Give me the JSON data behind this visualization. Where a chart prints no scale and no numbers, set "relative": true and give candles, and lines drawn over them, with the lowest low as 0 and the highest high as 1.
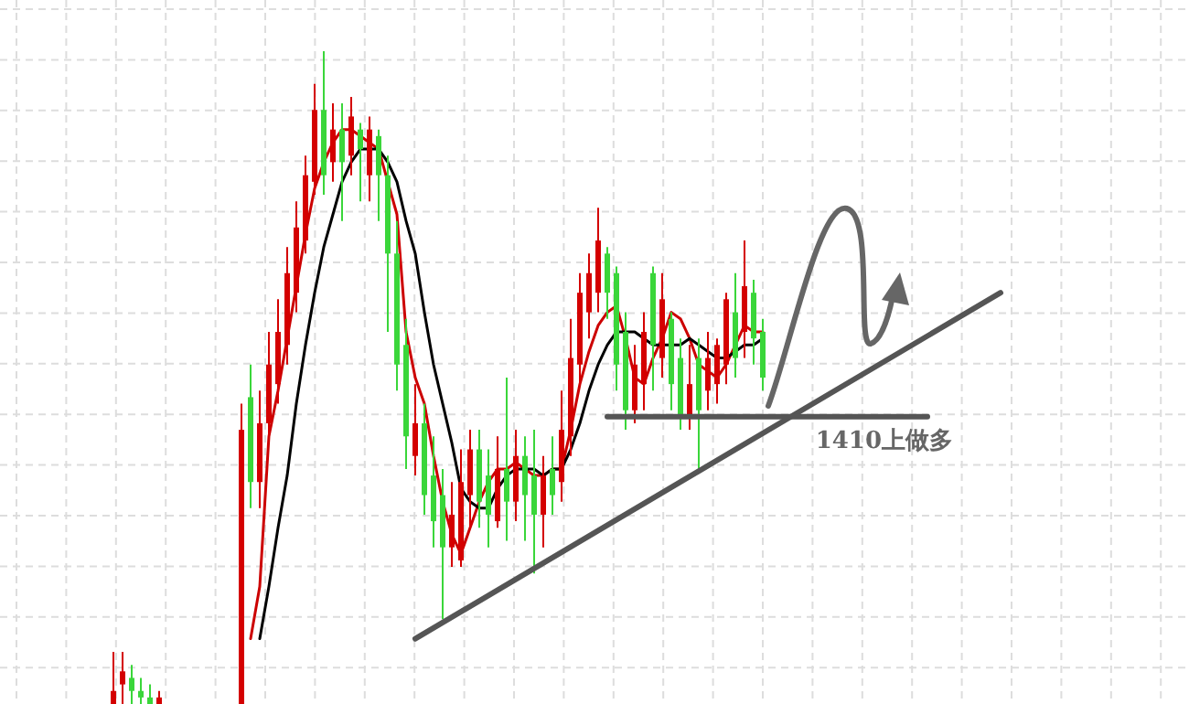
{
  "chart_data": {
    "type": "candlestick",
    "relative": true,
    "grid": true,
    "categories": [
      null,
      null,
      null,
      null,
      null,
      null,
      null,
      null,
      null,
      null,
      null,
      null,
      null,
      null,
      null,
      null,
      null,
      null,
      null,
      null,
      null,
      null,
      null,
      null,
      null,
      null,
      null,
      null,
      null,
      null,
      null,
      null,
      null,
      null,
      null,
      null,
      null,
      null,
      null,
      null,
      null,
      null,
      null,
      null,
      null,
      null,
      null,
      null,
      null,
      null,
      null,
      null,
      null,
      null,
      null,
      null,
      null,
      null,
      null,
      null,
      null,
      null,
      null,
      null,
      null,
      null,
      null,
      null,
      null,
      null,
      null,
      null,
      null,
      null,
      null,
      null,
      null,
      null,
      null,
      null,
      null,
      null,
      null,
      null,
      null,
      null,
      null,
      null,
      null,
      null,
      null,
      null,
      null,
      null,
      null,
      null,
      null,
      null
    ],
    "ohlc": [
      [
        0,
        0.08,
        0,
        0.02
      ],
      [
        0.03,
        0.08,
        0,
        0.05
      ],
      [
        0.04,
        0.06,
        0,
        0.02
      ],
      [
        0.02,
        0.04,
        0,
        0.01
      ],
      [
        0.01,
        0.03,
        0,
        0.0
      ],
      [
        0,
        0.02,
        0,
        0.01
      ],
      null,
      null,
      null,
      null,
      null,
      null,
      null,
      null,
      [
        0,
        0.46,
        0,
        0.42
      ],
      [
        0.47,
        0.52,
        0.3,
        0.34
      ],
      [
        0.34,
        0.48,
        0.3,
        0.43
      ],
      [
        0.43,
        0.57,
        0.41,
        0.52
      ],
      [
        0.49,
        0.62,
        0.46,
        0.57
      ],
      [
        0.55,
        0.7,
        0.52,
        0.66
      ],
      [
        0.63,
        0.77,
        0.6,
        0.73
      ],
      [
        0.71,
        0.84,
        0.69,
        0.81
      ],
      [
        0.8,
        0.95,
        0.78,
        0.91
      ],
      [
        0.91,
        1,
        0.78,
        0.81
      ],
      [
        0.83,
        0.92,
        0.8,
        0.88
      ],
      [
        0.88,
        0.92,
        0.74,
        0.83
      ],
      [
        0.84,
        0.93,
        0.81,
        0.9
      ],
      [
        0.88,
        0.89,
        0.77,
        0.85
      ],
      [
        0.81,
        0.9,
        0.77,
        0.88
      ],
      [
        0.87,
        0.88,
        0.74,
        0.81
      ],
      [
        0.81,
        0.84,
        0.57,
        0.69
      ],
      [
        0.69,
        0.74,
        0.48,
        0.52
      ],
      [
        0.55,
        0.59,
        0.36,
        0.41
      ],
      [
        0.38,
        0.49,
        0.35,
        0.43
      ],
      [
        0.43,
        0.46,
        0.29,
        0.32
      ],
      [
        0.35,
        0.41,
        0.24,
        0.28
      ],
      [
        0.32,
        0.36,
        0.13,
        0.24
      ],
      [
        0.24,
        0.34,
        0.21,
        0.29
      ],
      [
        0.22,
        0.39,
        0.21,
        0.34
      ],
      [
        0.32,
        0.42,
        0.27,
        0.39
      ],
      [
        0.39,
        0.42,
        0.27,
        0.31
      ],
      [
        0.35,
        0.39,
        0.24,
        0.29
      ],
      [
        0.28,
        0.41,
        0.27,
        0.36
      ],
      [
        0.36,
        0.5,
        0.25,
        0.31
      ],
      [
        0.31,
        0.42,
        0.28,
        0.38
      ],
      [
        0.38,
        0.41,
        0.25,
        0.32
      ],
      [
        0.35,
        0.42,
        0.2,
        0.29
      ],
      [
        0.29,
        0.38,
        0.24,
        0.35
      ],
      [
        0.36,
        0.41,
        0.29,
        0.32
      ],
      [
        0.34,
        0.48,
        0.31,
        0.42
      ],
      [
        0.41,
        0.59,
        0.38,
        0.53
      ],
      [
        0.52,
        0.66,
        0.49,
        0.63
      ],
      [
        0.6,
        0.69,
        0.56,
        0.66
      ],
      [
        0.63,
        0.76,
        0.6,
        0.71
      ],
      [
        0.69,
        0.7,
        0.59,
        0.63
      ],
      [
        0.66,
        0.67,
        0.48,
        0.52
      ],
      [
        0.57,
        0.6,
        0.42,
        0.45
      ],
      [
        0.45,
        0.55,
        0.43,
        0.52
      ],
      [
        0.49,
        0.6,
        0.45,
        0.57
      ],
      [
        0.66,
        0.67,
        0.48,
        0.55
      ],
      [
        0.53,
        0.66,
        0.5,
        0.62
      ],
      [
        0.59,
        0.6,
        0.45,
        0.49
      ],
      [
        0.53,
        0.56,
        0.42,
        0.44
      ],
      [
        0.44,
        0.55,
        0.42,
        0.49
      ],
      [
        0.53,
        0.56,
        0.36,
        0.45
      ],
      [
        0.48,
        0.57,
        0.45,
        0.53
      ],
      [
        0.49,
        0.56,
        0.46,
        0.55
      ],
      [
        0.52,
        0.63,
        0.49,
        0.62
      ],
      [
        0.6,
        0.66,
        0.5,
        0.53
      ],
      [
        0.57,
        0.71,
        0.53,
        0.64
      ],
      [
        0.63,
        0.65,
        0.52,
        0.56
      ],
      [
        0.57,
        0.59,
        0.48,
        0.5
      ],
      null,
      null,
      null,
      null,
      null,
      null,
      null,
      null,
      null,
      null,
      null,
      null,
      null,
      null,
      null,
      null,
      null,
      null,
      null,
      null,
      null,
      null,
      null,
      null,
      null,
      null
    ],
    "colors": [
      "#d40000",
      "#d40000",
      "#3ad63a",
      "#3ad63a",
      "#3ad63a",
      "#d40000",
      null,
      null,
      null,
      null,
      null,
      null,
      null,
      null,
      "#d40000",
      "#3ad63a",
      "#d40000",
      "#d40000",
      "#d40000",
      "#d40000",
      "#d40000",
      "#d40000",
      "#d40000",
      "#3ad63a",
      "#d40000",
      "#3ad63a",
      "#d40000",
      "#3ad63a",
      "#d40000",
      "#3ad63a",
      "#3ad63a",
      "#3ad63a",
      "#3ad63a",
      "#d40000",
      "#3ad63a",
      "#3ad63a",
      "#3ad63a",
      "#d40000",
      "#d40000",
      "#d40000",
      "#3ad63a",
      "#3ad63a",
      "#d40000",
      "#3ad63a",
      "#d40000",
      "#3ad63a",
      "#3ad63a",
      "#d40000",
      "#3ad63a",
      "#d40000",
      "#d40000",
      "#d40000",
      "#d40000",
      "#d40000",
      "#3ad63a",
      "#3ad63a",
      "#3ad63a",
      "#d40000",
      "#d40000",
      "#3ad63a",
      "#d40000",
      "#3ad63a",
      "#3ad63a",
      "#d40000",
      "#3ad63a",
      "#d40000",
      "#d40000",
      "#d40000",
      "#3ad63a",
      "#d40000",
      "#3ad63a",
      "#3ad63a",
      null,
      null,
      null,
      null,
      null,
      null,
      null,
      null,
      null,
      null,
      null,
      null,
      null,
      null,
      null,
      null,
      null,
      null,
      null,
      null,
      null,
      null,
      null,
      null,
      null,
      null
    ],
    "series": [
      {
        "type": "line",
        "color": "#cc0000",
        "values": [
          null,
          null,
          null,
          null,
          null,
          null,
          null,
          null,
          null,
          null,
          null,
          null,
          null,
          null,
          null,
          0.1,
          0.18,
          0.41,
          0.48,
          0.56,
          0.64,
          0.72,
          0.79,
          0.83,
          0.86,
          0.88,
          0.88,
          0.87,
          0.86,
          0.85,
          0.8,
          0.75,
          0.57,
          0.5,
          0.46,
          0.38,
          0.31,
          0.26,
          0.23,
          0.27,
          0.31,
          0.34,
          0.36,
          0.36,
          0.37,
          0.36,
          0.35,
          0.35,
          0.36,
          0.36,
          0.42,
          0.49,
          0.54,
          0.58,
          0.6,
          0.61,
          0.56,
          0.5,
          0.49,
          0.53,
          0.56,
          0.6,
          0.59,
          0.56,
          0.52,
          0.51,
          0.5,
          0.52,
          0.55,
          0.58,
          0.57,
          0.57,
          null,
          null,
          null,
          null,
          null,
          null,
          null,
          null,
          null,
          null,
          null,
          null,
          null,
          null,
          null,
          null,
          null,
          null,
          null,
          null,
          null,
          null,
          null,
          null,
          null,
          null
        ]
      },
      {
        "type": "line",
        "color": "#000000",
        "values": [
          null,
          null,
          null,
          null,
          null,
          null,
          null,
          null,
          null,
          null,
          null,
          null,
          null,
          null,
          null,
          null,
          0.1,
          0.18,
          0.27,
          0.35,
          0.46,
          0.55,
          0.63,
          0.7,
          0.75,
          0.8,
          0.83,
          0.85,
          0.85,
          0.85,
          0.83,
          0.8,
          0.74,
          0.69,
          0.6,
          0.52,
          0.46,
          0.4,
          0.33,
          0.31,
          0.3,
          0.3,
          0.33,
          0.35,
          0.36,
          0.36,
          0.36,
          0.35,
          0.36,
          0.36,
          0.39,
          0.43,
          0.48,
          0.52,
          0.55,
          0.57,
          0.57,
          0.57,
          0.56,
          0.55,
          0.55,
          0.55,
          0.55,
          0.56,
          0.55,
          0.54,
          0.53,
          0.53,
          0.54,
          0.55,
          0.55,
          0.56,
          null,
          null,
          null,
          null,
          null,
          null,
          null,
          null,
          null,
          null,
          null,
          null,
          null,
          null,
          null,
          null,
          null,
          null,
          null,
          null,
          null,
          null,
          null,
          null,
          null,
          null
        ]
      },
      {
        "type": "line",
        "color": "#555555",
        "values": [
          null,
          null,
          null,
          null,
          null,
          null,
          null,
          null,
          null,
          null,
          null,
          null,
          null,
          null,
          null,
          null,
          null,
          null,
          null,
          null,
          null,
          null,
          null,
          null,
          null,
          null,
          null,
          null,
          null,
          null,
          null,
          null,
          null,
          0.1,
          null,
          null,
          null,
          null,
          null,
          null,
          null,
          null,
          null,
          null,
          null,
          null,
          null,
          null,
          null,
          null,
          null,
          null,
          null,
          null,
          null,
          null,
          null,
          null,
          null,
          null,
          null,
          null,
          null,
          null,
          null,
          null,
          null,
          null,
          null,
          null,
          null,
          null,
          null,
          null,
          null,
          null,
          null,
          null,
          null,
          null,
          null,
          null,
          null,
          null,
          null,
          null,
          null,
          null,
          null,
          null,
          null,
          null,
          null,
          null,
          null,
          null,
          null,
          0.63
        ]
      },
      {
        "type": "line",
        "color": "#555555",
        "values": [
          null,
          null,
          null,
          null,
          null,
          null,
          null,
          null,
          null,
          null,
          null,
          null,
          null,
          null,
          null,
          null,
          null,
          null,
          null,
          null,
          null,
          null,
          null,
          null,
          null,
          null,
          null,
          null,
          null,
          null,
          null,
          null,
          null,
          null,
          null,
          null,
          null,
          null,
          null,
          null,
          null,
          null,
          null,
          null,
          null,
          null,
          null,
          null,
          null,
          null,
          null,
          null,
          null,
          null,
          0.44,
          null,
          null,
          null,
          null,
          null,
          null,
          null,
          null,
          null,
          null,
          null,
          null,
          null,
          null,
          null,
          null,
          null,
          null,
          null,
          null,
          null,
          null,
          null,
          null,
          null,
          null,
          null,
          null,
          null,
          null,
          null,
          null,
          null,
          null,
          0.44,
          null,
          null,
          null,
          null,
          null,
          null,
          null,
          null
        ]
      }
    ],
    "annotations": [
      "1410上做多"
    ]
  }
}
